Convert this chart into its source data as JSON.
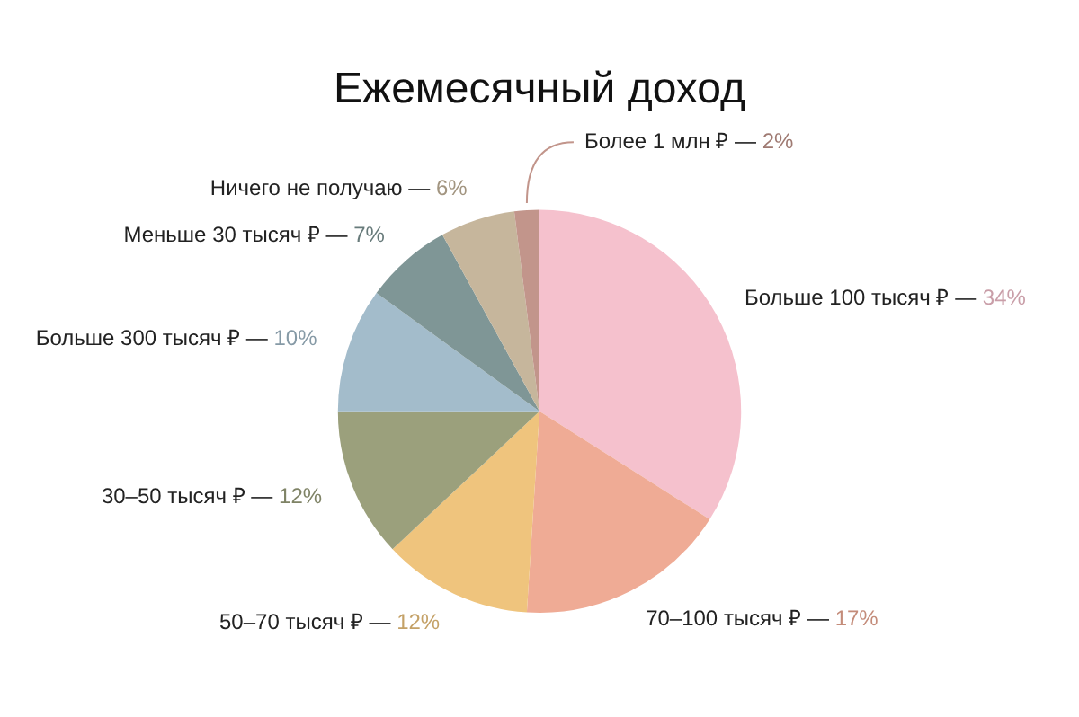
{
  "chart_data": {
    "type": "pie",
    "title": "Ежемесячный доход",
    "categories": [
      "Больше 100 тысяч ₽ —",
      "70–100 тысяч ₽ —",
      "50–70 тысяч ₽ —",
      "30–50 тысяч ₽ —",
      "Больше 300 тысяч ₽ —",
      "Меньше 30 тысяч ₽ —",
      "Ничего не получаю —",
      "Более 1 млн ₽ —"
    ],
    "values": [
      34,
      17,
      12,
      12,
      10,
      7,
      6,
      2
    ],
    "value_labels": [
      "34%",
      "17%",
      "12%",
      "12%",
      "10%",
      "7%",
      "6%",
      "2%"
    ],
    "colors": [
      "#f5c1cd",
      "#efab95",
      "#efc47d",
      "#9ba07c",
      "#a3bccb",
      "#7f9696",
      "#c6b69c",
      "#c2958b"
    ],
    "legend": false
  }
}
